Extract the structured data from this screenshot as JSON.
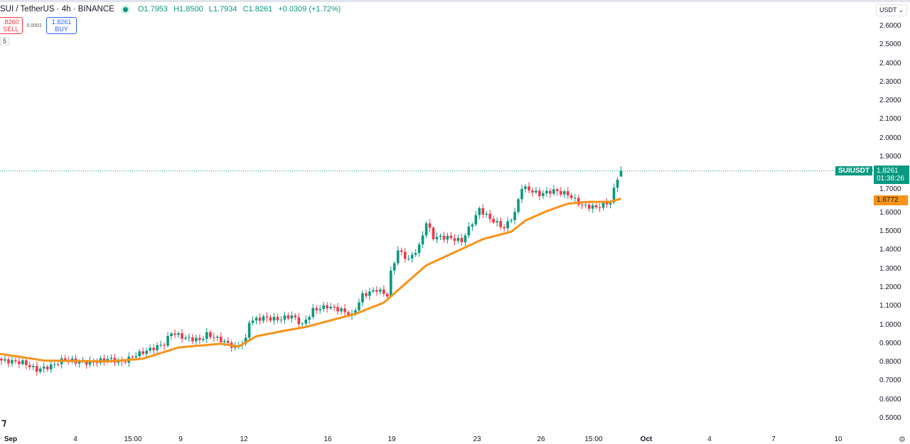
{
  "header": {
    "symbol": "SUI / TetherUS · 4h · BINANCE",
    "open": "O1.7953",
    "high": "H1.8500",
    "low": "L1.7934",
    "close": "C1.8261",
    "change": "+0.0309 (+1.72%)"
  },
  "trade": {
    "sell_price": ".8260",
    "sell_label": "SELL",
    "spread": "0.0001",
    "buy_price": "1.8261",
    "buy_label": "BUY"
  },
  "misc": {
    "indicator_count": "5",
    "currency": "USDT",
    "logo": "TV"
  },
  "price_axis": [
    "2.6000",
    "2.5000",
    "2.4000",
    "2.3000",
    "2.2000",
    "2.1000",
    "2.0000",
    "1.9000",
    "1.7000",
    "1.6000",
    "1.5000",
    "1.4000",
    "1.3000",
    "1.2000",
    "1.1000",
    "1.0000",
    "0.9000",
    "0.8000",
    "0.7000",
    "0.6000",
    "0.5000"
  ],
  "current": {
    "ticker": "SUIUSDT",
    "price": "1.8261",
    "countdown": "01:38:26",
    "ma_value": "1.6772"
  },
  "time_axis": [
    "Sep",
    "4",
    "15:00",
    "9",
    "12",
    "16",
    "19",
    "23",
    "26",
    "15:00",
    "Oct",
    "4",
    "7",
    "10"
  ],
  "colors": {
    "up": "#089981",
    "down": "#f23645",
    "ma": "#f7931a"
  },
  "chart_data": {
    "type": "candlestick",
    "price_range": [
      0.5,
      2.6
    ],
    "close_keypoints": [
      [
        0,
        0.81
      ],
      [
        6,
        0.8
      ],
      [
        10,
        0.76
      ],
      [
        14,
        0.78
      ],
      [
        18,
        0.82
      ],
      [
        22,
        0.8
      ],
      [
        26,
        0.8
      ],
      [
        30,
        0.82
      ],
      [
        34,
        0.8
      ],
      [
        38,
        0.84
      ],
      [
        42,
        0.87
      ],
      [
        46,
        0.9
      ],
      [
        48,
        0.96
      ],
      [
        52,
        0.93
      ],
      [
        56,
        0.92
      ],
      [
        58,
        0.95
      ],
      [
        62,
        0.92
      ],
      [
        66,
        0.88
      ],
      [
        69,
        0.92
      ],
      [
        70,
        1.02
      ],
      [
        74,
        1.04
      ],
      [
        78,
        1.03
      ],
      [
        82,
        1.05
      ],
      [
        85,
        1.0
      ],
      [
        88,
        1.08
      ],
      [
        92,
        1.1
      ],
      [
        96,
        1.08
      ],
      [
        99,
        1.05
      ],
      [
        102,
        1.16
      ],
      [
        106,
        1.19
      ],
      [
        109,
        1.16
      ],
      [
        110,
        1.28
      ],
      [
        112,
        1.4
      ],
      [
        115,
        1.35
      ],
      [
        118,
        1.42
      ],
      [
        120,
        1.55
      ],
      [
        122,
        1.47
      ],
      [
        126,
        1.47
      ],
      [
        130,
        1.45
      ],
      [
        133,
        1.55
      ],
      [
        135,
        1.62
      ],
      [
        138,
        1.57
      ],
      [
        142,
        1.52
      ],
      [
        145,
        1.6
      ],
      [
        147,
        1.74
      ],
      [
        152,
        1.7
      ],
      [
        156,
        1.72
      ],
      [
        160,
        1.7
      ],
      [
        164,
        1.64
      ],
      [
        168,
        1.63
      ],
      [
        172,
        1.66
      ],
      [
        174,
        1.79
      ],
      [
        175,
        1.8261
      ]
    ],
    "ma_keypoints": [
      [
        0,
        0.845
      ],
      [
        12,
        0.81
      ],
      [
        30,
        0.805
      ],
      [
        40,
        0.82
      ],
      [
        50,
        0.88
      ],
      [
        62,
        0.9
      ],
      [
        67,
        0.885
      ],
      [
        72,
        0.94
      ],
      [
        80,
        0.97
      ],
      [
        86,
        0.99
      ],
      [
        94,
        1.03
      ],
      [
        100,
        1.06
      ],
      [
        108,
        1.12
      ],
      [
        114,
        1.22
      ],
      [
        120,
        1.32
      ],
      [
        128,
        1.39
      ],
      [
        136,
        1.46
      ],
      [
        144,
        1.5
      ],
      [
        148,
        1.56
      ],
      [
        154,
        1.61
      ],
      [
        160,
        1.65
      ],
      [
        166,
        1.66
      ],
      [
        172,
        1.66
      ],
      [
        175,
        1.6772
      ]
    ]
  }
}
